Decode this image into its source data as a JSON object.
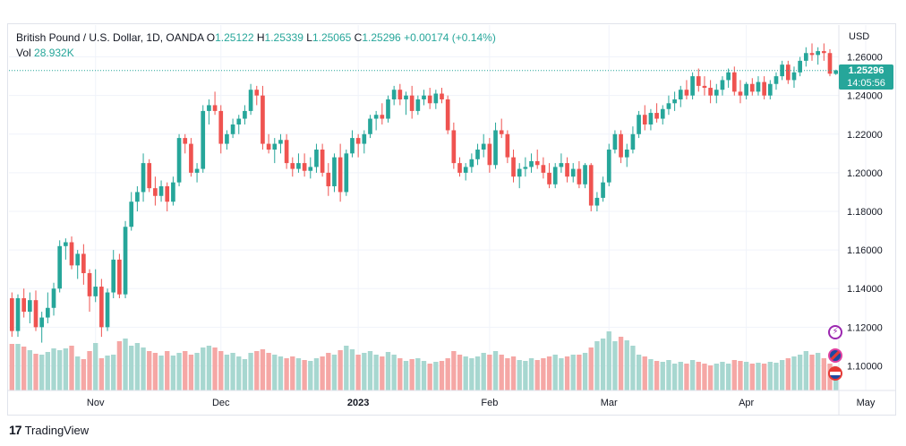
{
  "legend": {
    "symbol": "British Pound / U.S. Dollar, 1D, OANDA",
    "open_label": "O",
    "open": "1.25122",
    "high_label": "H",
    "high": "1.25339",
    "low_label": "L",
    "low": "1.25065",
    "close_label": "C",
    "close": "1.25296",
    "change": "+0.00174 (+0.14%)",
    "vol_label": "Vol",
    "vol": "28.932K"
  },
  "price_axis": {
    "currency": "USD",
    "last_price": "1.25296",
    "countdown": "14:05:56"
  },
  "brand": {
    "name": "TradingView",
    "logo_glyph": "17"
  },
  "badges": {
    "first_glyph": "⚡"
  },
  "colors": {
    "up": "#26a69a",
    "down": "#ef5350",
    "vol_up": "#a7d7d0",
    "vol_down": "#f5a7a5",
    "grid": "#f0f3fa",
    "last_line": "#26a69a"
  },
  "chart_data": {
    "type": "candlestick",
    "title": "",
    "xlabel": "",
    "ylabel": "",
    "ylim": [
      1.09,
      1.27
    ],
    "y_ticks": [
      1.1,
      1.12,
      1.14,
      1.16,
      1.18,
      1.2,
      1.22,
      1.24,
      1.26
    ],
    "y_tick_labels": [
      "1.10000",
      "1.12000",
      "1.14000",
      "1.16000",
      "1.18000",
      "1.20000",
      "1.22000",
      "1.24000",
      "1.26000"
    ],
    "x_ticks": [
      {
        "label": "Nov",
        "index": 14
      },
      {
        "label": "Dec",
        "index": 35
      },
      {
        "label": "2023",
        "index": 58
      },
      {
        "label": "Feb",
        "index": 80
      },
      {
        "label": "Mar",
        "index": 100
      },
      {
        "label": "Apr",
        "index": 123
      },
      {
        "label": "May",
        "index": 143
      }
    ],
    "grid": true,
    "candles": [
      [
        1.135,
        1.138,
        1.115,
        1.118,
        0.52
      ],
      [
        1.118,
        1.137,
        1.115,
        1.135,
        0.52
      ],
      [
        1.135,
        1.14,
        1.125,
        1.128,
        0.49
      ],
      [
        1.128,
        1.138,
        1.122,
        1.134,
        0.45
      ],
      [
        1.134,
        1.139,
        1.118,
        1.12,
        0.41
      ],
      [
        1.12,
        1.128,
        1.112,
        1.125,
        0.4
      ],
      [
        1.125,
        1.138,
        1.122,
        1.13,
        0.43
      ],
      [
        1.13,
        1.143,
        1.126,
        1.14,
        0.47
      ],
      [
        1.14,
        1.165,
        1.138,
        1.162,
        0.45
      ],
      [
        1.162,
        1.166,
        1.155,
        1.164,
        0.47
      ],
      [
        1.164,
        1.167,
        1.15,
        1.152,
        0.5
      ],
      [
        1.152,
        1.16,
        1.145,
        1.158,
        0.38
      ],
      [
        1.158,
        1.163,
        1.142,
        1.148,
        0.35
      ],
      [
        1.148,
        1.15,
        1.128,
        1.136,
        0.44
      ],
      [
        1.136,
        1.15,
        1.133,
        1.141,
        0.53
      ],
      [
        1.141,
        1.145,
        1.115,
        1.12,
        0.36
      ],
      [
        1.12,
        1.14,
        1.118,
        1.138,
        0.39
      ],
      [
        1.138,
        1.16,
        1.135,
        1.155,
        0.4
      ],
      [
        1.155,
        1.158,
        1.135,
        1.137,
        0.55
      ],
      [
        1.137,
        1.175,
        1.135,
        1.172,
        0.58
      ],
      [
        1.172,
        1.19,
        1.17,
        1.185,
        0.5
      ],
      [
        1.185,
        1.193,
        1.18,
        1.19,
        0.53
      ],
      [
        1.19,
        1.21,
        1.185,
        1.205,
        0.48
      ],
      [
        1.205,
        1.207,
        1.19,
        1.192,
        0.44
      ],
      [
        1.192,
        1.198,
        1.183,
        1.188,
        0.42
      ],
      [
        1.188,
        1.196,
        1.185,
        1.193,
        0.39
      ],
      [
        1.193,
        1.195,
        1.18,
        1.185,
        0.44
      ],
      [
        1.185,
        1.198,
        1.183,
        1.195,
        0.39
      ],
      [
        1.195,
        1.22,
        1.193,
        1.218,
        0.42
      ],
      [
        1.218,
        1.22,
        1.21,
        1.215,
        0.44
      ],
      [
        1.215,
        1.218,
        1.198,
        1.2,
        0.4
      ],
      [
        1.2,
        1.205,
        1.195,
        1.202,
        0.42
      ],
      [
        1.202,
        1.235,
        1.2,
        1.232,
        0.48
      ],
      [
        1.232,
        1.238,
        1.225,
        1.235,
        0.5
      ],
      [
        1.235,
        1.242,
        1.23,
        1.232,
        0.48
      ],
      [
        1.232,
        1.235,
        1.21,
        1.215,
        0.44
      ],
      [
        1.215,
        1.222,
        1.212,
        1.22,
        0.4
      ],
      [
        1.22,
        1.228,
        1.218,
        1.225,
        0.42
      ],
      [
        1.225,
        1.23,
        1.22,
        1.228,
        0.38
      ],
      [
        1.228,
        1.235,
        1.225,
        1.232,
        0.35
      ],
      [
        1.232,
        1.246,
        1.23,
        1.243,
        0.42
      ],
      [
        1.243,
        1.245,
        1.235,
        1.24,
        0.44
      ],
      [
        1.24,
        1.245,
        1.212,
        1.215,
        0.46
      ],
      [
        1.215,
        1.22,
        1.21,
        1.212,
        0.42
      ],
      [
        1.212,
        1.218,
        1.205,
        1.215,
        0.4
      ],
      [
        1.215,
        1.22,
        1.21,
        1.217,
        0.38
      ],
      [
        1.217,
        1.22,
        1.202,
        1.205,
        0.36
      ],
      [
        1.205,
        1.208,
        1.198,
        1.202,
        0.38
      ],
      [
        1.202,
        1.21,
        1.2,
        1.205,
        0.36
      ],
      [
        1.205,
        1.21,
        1.198,
        1.201,
        0.34
      ],
      [
        1.201,
        1.208,
        1.197,
        1.203,
        0.33
      ],
      [
        1.203,
        1.215,
        1.2,
        1.212,
        0.36
      ],
      [
        1.212,
        1.215,
        1.198,
        1.2,
        0.38
      ],
      [
        1.2,
        1.205,
        1.188,
        1.193,
        0.42
      ],
      [
        1.193,
        1.21,
        1.19,
        1.208,
        0.4
      ],
      [
        1.208,
        1.215,
        1.185,
        1.19,
        0.45
      ],
      [
        1.19,
        1.212,
        1.188,
        1.21,
        0.5
      ],
      [
        1.21,
        1.222,
        1.208,
        1.218,
        0.46
      ],
      [
        1.218,
        1.22,
        1.208,
        1.215,
        0.4
      ],
      [
        1.215,
        1.222,
        1.21,
        1.22,
        0.42
      ],
      [
        1.22,
        1.23,
        1.218,
        1.228,
        0.44
      ],
      [
        1.228,
        1.232,
        1.222,
        1.23,
        0.4
      ],
      [
        1.23,
        1.236,
        1.225,
        1.228,
        0.38
      ],
      [
        1.228,
        1.24,
        1.226,
        1.238,
        0.43
      ],
      [
        1.238,
        1.245,
        1.235,
        1.243,
        0.4
      ],
      [
        1.243,
        1.246,
        1.235,
        1.238,
        0.36
      ],
      [
        1.238,
        1.242,
        1.23,
        1.24,
        0.33
      ],
      [
        1.24,
        1.245,
        1.228,
        1.232,
        0.35
      ],
      [
        1.232,
        1.24,
        1.23,
        1.238,
        0.36
      ],
      [
        1.238,
        1.243,
        1.235,
        1.24,
        0.33
      ],
      [
        1.24,
        1.244,
        1.233,
        1.236,
        0.3
      ],
      [
        1.236,
        1.243,
        1.233,
        1.241,
        0.32
      ],
      [
        1.241,
        1.244,
        1.236,
        1.238,
        0.33
      ],
      [
        1.238,
        1.24,
        1.22,
        1.222,
        0.36
      ],
      [
        1.222,
        1.226,
        1.202,
        1.205,
        0.44
      ],
      [
        1.205,
        1.208,
        1.198,
        1.2,
        0.4
      ],
      [
        1.2,
        1.205,
        1.196,
        1.203,
        0.38
      ],
      [
        1.203,
        1.21,
        1.2,
        1.207,
        0.36
      ],
      [
        1.207,
        1.215,
        1.204,
        1.212,
        0.38
      ],
      [
        1.212,
        1.22,
        1.208,
        1.215,
        0.42
      ],
      [
        1.215,
        1.218,
        1.2,
        1.204,
        0.4
      ],
      [
        1.204,
        1.226,
        1.202,
        1.222,
        0.44
      ],
      [
        1.222,
        1.228,
        1.218,
        1.22,
        0.4
      ],
      [
        1.22,
        1.222,
        1.205,
        1.208,
        0.36
      ],
      [
        1.208,
        1.212,
        1.195,
        1.198,
        0.38
      ],
      [
        1.198,
        1.205,
        1.192,
        1.202,
        0.34
      ],
      [
        1.202,
        1.208,
        1.198,
        1.203,
        0.33
      ],
      [
        1.203,
        1.21,
        1.2,
        1.206,
        0.36
      ],
      [
        1.206,
        1.212,
        1.202,
        1.204,
        0.34
      ],
      [
        1.204,
        1.208,
        1.197,
        1.2,
        0.36
      ],
      [
        1.2,
        1.205,
        1.192,
        1.194,
        0.38
      ],
      [
        1.194,
        1.205,
        1.192,
        1.203,
        0.4
      ],
      [
        1.203,
        1.21,
        1.2,
        1.205,
        0.36
      ],
      [
        1.205,
        1.208,
        1.195,
        1.198,
        0.38
      ],
      [
        1.198,
        1.205,
        1.195,
        1.202,
        0.4
      ],
      [
        1.202,
        1.206,
        1.192,
        1.194,
        0.4
      ],
      [
        1.194,
        1.205,
        1.192,
        1.204,
        0.42
      ],
      [
        1.204,
        1.205,
        1.18,
        1.183,
        0.48
      ],
      [
        1.183,
        1.19,
        1.18,
        1.187,
        0.55
      ],
      [
        1.187,
        1.198,
        1.185,
        1.195,
        0.58
      ],
      [
        1.195,
        1.215,
        1.193,
        1.212,
        0.66
      ],
      [
        1.212,
        1.222,
        1.21,
        1.22,
        0.55
      ],
      [
        1.22,
        1.222,
        1.205,
        1.208,
        0.6
      ],
      [
        1.208,
        1.215,
        1.203,
        1.212,
        0.56
      ],
      [
        1.212,
        1.224,
        1.21,
        1.22,
        0.5
      ],
      [
        1.22,
        1.232,
        1.218,
        1.23,
        0.4
      ],
      [
        1.23,
        1.235,
        1.222,
        1.225,
        0.38
      ],
      [
        1.225,
        1.233,
        1.222,
        1.231,
        0.35
      ],
      [
        1.231,
        1.236,
        1.226,
        1.228,
        0.33
      ],
      [
        1.228,
        1.235,
        1.225,
        1.233,
        0.32
      ],
      [
        1.233,
        1.24,
        1.23,
        1.236,
        0.34
      ],
      [
        1.236,
        1.242,
        1.232,
        1.238,
        0.3
      ],
      [
        1.238,
        1.245,
        1.234,
        1.243,
        0.32
      ],
      [
        1.243,
        1.248,
        1.238,
        1.24,
        0.3
      ],
      [
        1.24,
        1.252,
        1.238,
        1.25,
        0.34
      ],
      [
        1.25,
        1.254,
        1.242,
        1.245,
        0.32
      ],
      [
        1.245,
        1.25,
        1.24,
        1.244,
        0.3
      ],
      [
        1.244,
        1.248,
        1.236,
        1.24,
        0.28
      ],
      [
        1.24,
        1.246,
        1.236,
        1.243,
        0.3
      ],
      [
        1.243,
        1.25,
        1.24,
        1.248,
        0.32
      ],
      [
        1.248,
        1.254,
        1.244,
        1.252,
        0.3
      ],
      [
        1.252,
        1.255,
        1.24,
        1.242,
        0.34
      ],
      [
        1.242,
        1.248,
        1.236,
        1.24,
        0.33
      ],
      [
        1.24,
        1.247,
        1.238,
        1.246,
        0.32
      ],
      [
        1.246,
        1.249,
        1.24,
        1.242,
        0.3
      ],
      [
        1.242,
        1.25,
        1.24,
        1.247,
        0.31
      ],
      [
        1.247,
        1.25,
        1.238,
        1.24,
        0.3
      ],
      [
        1.24,
        1.248,
        1.238,
        1.246,
        0.32
      ],
      [
        1.246,
        1.252,
        1.243,
        1.25,
        0.31
      ],
      [
        1.25,
        1.258,
        1.248,
        1.256,
        0.34
      ],
      [
        1.256,
        1.258,
        1.246,
        1.248,
        0.36
      ],
      [
        1.248,
        1.255,
        1.244,
        1.252,
        0.38
      ],
      [
        1.252,
        1.26,
        1.25,
        1.258,
        0.4
      ],
      [
        1.258,
        1.265,
        1.255,
        1.262,
        0.44
      ],
      [
        1.262,
        1.267,
        1.258,
        1.261,
        0.4
      ],
      [
        1.261,
        1.265,
        1.256,
        1.263,
        0.42
      ],
      [
        1.263,
        1.267,
        1.258,
        1.262,
        0.36
      ],
      [
        1.262,
        1.264,
        1.25,
        1.2513,
        0.3
      ],
      [
        1.2512,
        1.2534,
        1.2507,
        1.253,
        0.24
      ]
    ]
  }
}
